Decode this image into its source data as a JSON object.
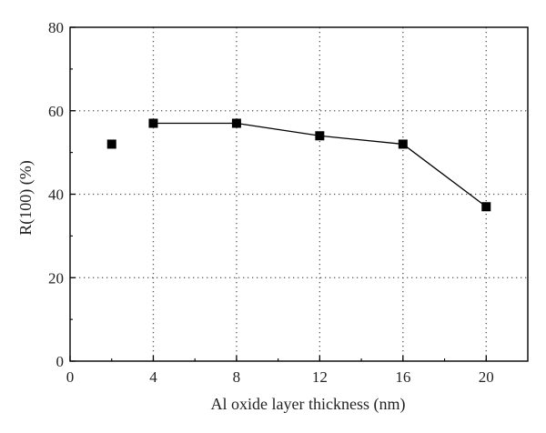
{
  "chart_data": {
    "type": "line",
    "title": "",
    "xlabel": "Al oxide layer thickness (nm)",
    "ylabel": "R(100) (%)",
    "xlim": [
      0,
      22
    ],
    "ylim": [
      0,
      80
    ],
    "xticks": [
      0,
      4,
      8,
      12,
      16,
      20
    ],
    "yticks": [
      0,
      20,
      40,
      60,
      80
    ],
    "x_tick_labels": [
      "0",
      "4",
      "8",
      "12",
      "16",
      "20"
    ],
    "y_tick_labels": [
      "0",
      "20",
      "40",
      "60",
      "80"
    ],
    "grid": true,
    "marker": "square",
    "line_segments_start_index": 1,
    "series": [
      {
        "x": [
          2,
          4,
          8,
          12,
          16,
          20
        ],
        "y": [
          52,
          57,
          57,
          54,
          52,
          37
        ],
        "color": "#000000"
      }
    ]
  }
}
